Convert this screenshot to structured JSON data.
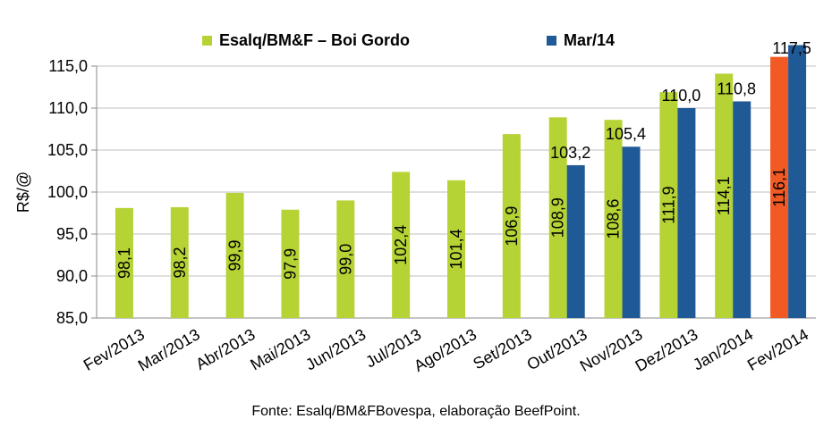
{
  "chart_data": {
    "type": "bar",
    "title": "",
    "xlabel": "",
    "ylabel": "R$/@",
    "ylim": [
      85,
      115
    ],
    "yticks": [
      "85,0",
      "90,0",
      "95,0",
      "100,0",
      "105,0",
      "110,0",
      "115,0"
    ],
    "grid": true,
    "legend_position": "top",
    "categories": [
      "Fev/2013",
      "Mar/2013",
      "Abr/2013",
      "Mai/2013",
      "Jun/2013",
      "Jul/2013",
      "Ago/2013",
      "Set/2013",
      "Out/2013",
      "Nov/2013",
      "Dez/2013",
      "Jan/2014",
      "Fev/2014"
    ],
    "series": [
      {
        "name": "Esalq/BM&F – Boi Gordo",
        "color": "#b5d334",
        "values": [
          98.1,
          98.2,
          99.9,
          97.9,
          99.0,
          102.4,
          101.4,
          106.9,
          108.9,
          108.6,
          111.9,
          114.1,
          116.1
        ],
        "labels": [
          "98,1",
          "98,2",
          "99,9",
          "97,9",
          "99,0",
          "102,4",
          "101,4",
          "106,9",
          "108,9",
          "108,6",
          "111,9",
          "114,1",
          "116,1"
        ]
      },
      {
        "name": "Mar/14",
        "color": "#1f5996",
        "values": [
          null,
          null,
          null,
          null,
          null,
          null,
          null,
          null,
          103.2,
          105.4,
          110.0,
          110.8,
          117.5
        ],
        "labels": [
          "",
          "",
          "",
          "",
          "",
          "",
          "",
          "",
          "103,2",
          "105,4",
          "110,0",
          "110,8",
          "117,5"
        ]
      }
    ],
    "highlight": {
      "category_index": 12,
      "series_index": 0,
      "color": "#f15a24"
    }
  },
  "source_text": "Fonte: Esalq/BM&FBovespa, elaboração BeefPoint."
}
